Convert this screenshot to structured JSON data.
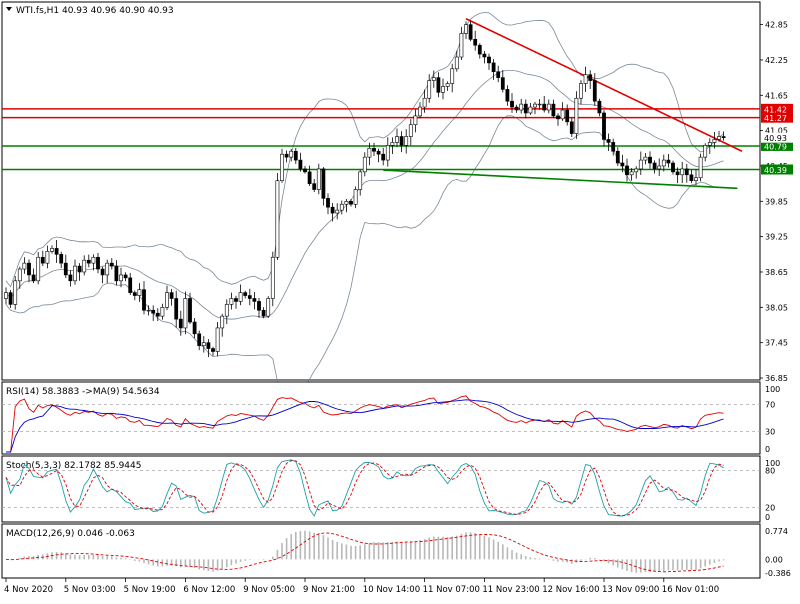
{
  "chart_data": [
    {
      "type": "candlestick",
      "title": "WTI.fs,H1  40.93 40.96 40.90 40.93",
      "symbol": "WTI.fs,H1",
      "ohlc_current": [
        40.93,
        40.96,
        40.9,
        40.93
      ],
      "ylim": [
        36.85,
        43.2
      ],
      "y_ticks": [
        "42.85",
        "42.25",
        "41.65",
        "41.05",
        "40.45",
        "39.85",
        "39.25",
        "38.65",
        "38.05",
        "37.45",
        "36.85"
      ],
      "y_tick_values": [
        42.85,
        42.25,
        41.65,
        41.05,
        40.45,
        39.85,
        39.25,
        38.65,
        38.05,
        37.45,
        36.85
      ],
      "x_ticks": [
        "4 Nov 2020",
        "5 Nov 03:00",
        "5 Nov 19:00",
        "6 Nov 12:00",
        "9 Nov 05:00",
        "9 Nov 21:00",
        "10 Nov 14:00",
        "11 Nov 07:00",
        "11 Nov 23:00",
        "12 Nov 16:00",
        "13 Nov 09:00",
        "16 Nov 01:00"
      ],
      "x_tick_index": [
        0,
        13,
        26,
        39,
        52,
        65,
        78,
        91,
        104,
        117,
        130,
        143
      ],
      "closes": [
        38.3,
        38.1,
        38.5,
        38.7,
        38.8,
        38.6,
        38.5,
        38.9,
        38.8,
        39.0,
        39.05,
        38.95,
        38.8,
        38.6,
        38.5,
        38.75,
        38.65,
        38.85,
        38.8,
        38.9,
        38.7,
        38.6,
        38.8,
        38.75,
        38.5,
        38.6,
        38.55,
        38.3,
        38.25,
        38.35,
        38.0,
        38.0,
        37.95,
        37.9,
        38.05,
        38.3,
        38.2,
        37.85,
        37.7,
        38.2,
        37.8,
        37.6,
        37.4,
        37.45,
        37.35,
        37.3,
        37.7,
        37.9,
        38.1,
        38.2,
        38.15,
        38.3,
        38.25,
        38.2,
        38.15,
        38.0,
        37.9,
        38.2,
        38.9,
        40.2,
        40.65,
        40.6,
        40.7,
        40.55,
        40.4,
        40.35,
        40.15,
        40.05,
        40.4,
        39.9,
        39.75,
        39.65,
        39.7,
        39.8,
        39.85,
        39.8,
        40.05,
        40.35,
        40.6,
        40.75,
        40.7,
        40.65,
        40.55,
        40.8,
        40.85,
        40.95,
        40.8,
        40.95,
        41.15,
        41.3,
        41.45,
        41.6,
        41.9,
        41.95,
        41.7,
        41.8,
        41.85,
        42.1,
        42.3,
        42.7,
        42.85,
        42.6,
        42.5,
        42.35,
        42.3,
        42.2,
        42.05,
        41.95,
        41.75,
        41.55,
        41.45,
        41.4,
        41.5,
        41.35,
        41.45,
        41.5,
        41.5,
        41.4,
        41.5,
        41.3,
        41.25,
        41.4,
        41.2,
        41.0,
        41.6,
        41.85,
        42.0,
        41.9,
        41.55,
        41.35,
        40.9,
        40.85,
        40.7,
        40.5,
        40.45,
        40.3,
        40.35,
        40.4,
        40.55,
        40.6,
        40.5,
        40.4,
        40.45,
        40.55,
        40.5,
        40.35,
        40.3,
        40.4,
        40.3,
        40.2,
        40.25,
        40.6,
        40.8,
        40.85,
        40.9,
        40.95,
        40.93
      ],
      "bollinger_period": 20,
      "bollinger_deviation": 2,
      "horizontal_levels": [
        {
          "label": "41.42",
          "value": 41.42,
          "color": "#e00000"
        },
        {
          "label": "41.27",
          "value": 41.27,
          "color": "#e00000"
        },
        {
          "label": "40.79",
          "value": 40.79,
          "color": "#008000"
        },
        {
          "label": "40.39",
          "value": 40.39,
          "color": "#008000"
        }
      ],
      "last_price_label": "40.93",
      "trendlines": [
        {
          "name": "resistance",
          "color": "#e00000",
          "from": {
            "bar": 100,
            "price": 42.95
          },
          "to": {
            "bar": 160,
            "price": 40.7
          }
        },
        {
          "name": "support",
          "color": "#008000",
          "from": {
            "bar": 82,
            "price": 40.38
          },
          "to": {
            "bar": 159,
            "price": 40.07
          }
        }
      ]
    },
    {
      "type": "line",
      "title": "RSI(14) 58.3883  ->MA(9) 54.5634",
      "ylim": [
        0,
        100
      ],
      "y_ticks": [
        "100",
        "70",
        "30",
        "0"
      ],
      "y_tick_values": [
        100,
        70,
        30,
        0
      ],
      "levels": [
        70,
        30
      ],
      "series": [
        {
          "name": "RSI(14)",
          "color": "#e00000",
          "last": 58.3883
        },
        {
          "name": "MA(9)",
          "color": "#0000cc",
          "last": 54.5634
        }
      ]
    },
    {
      "type": "line",
      "title": "Stoch(5,3,3) 82.1782 85.9445",
      "ylim": [
        0,
        100
      ],
      "y_ticks": [
        "100",
        "80",
        "20",
        "0"
      ],
      "y_tick_values": [
        100,
        80,
        20,
        0
      ],
      "levels": [
        80,
        20
      ],
      "series": [
        {
          "name": "Main",
          "color": "#20a0a8",
          "last": 82.1782
        },
        {
          "name": "Signal",
          "color": "#e00000",
          "last": 85.9445
        }
      ]
    },
    {
      "type": "bar",
      "title": "MACD(12,26,9) 0.046 -0.063",
      "ylim": [
        -0.386,
        0.774
      ],
      "y_ticks": [
        "0.774",
        "0.00",
        "-0.386"
      ],
      "y_tick_values": [
        0.774,
        0,
        -0.386
      ],
      "series": [
        {
          "name": "MACD",
          "color": "#c0c0c0",
          "last": 0.046
        },
        {
          "name": "Signal",
          "color": "#e00000",
          "last": -0.063
        }
      ]
    }
  ]
}
